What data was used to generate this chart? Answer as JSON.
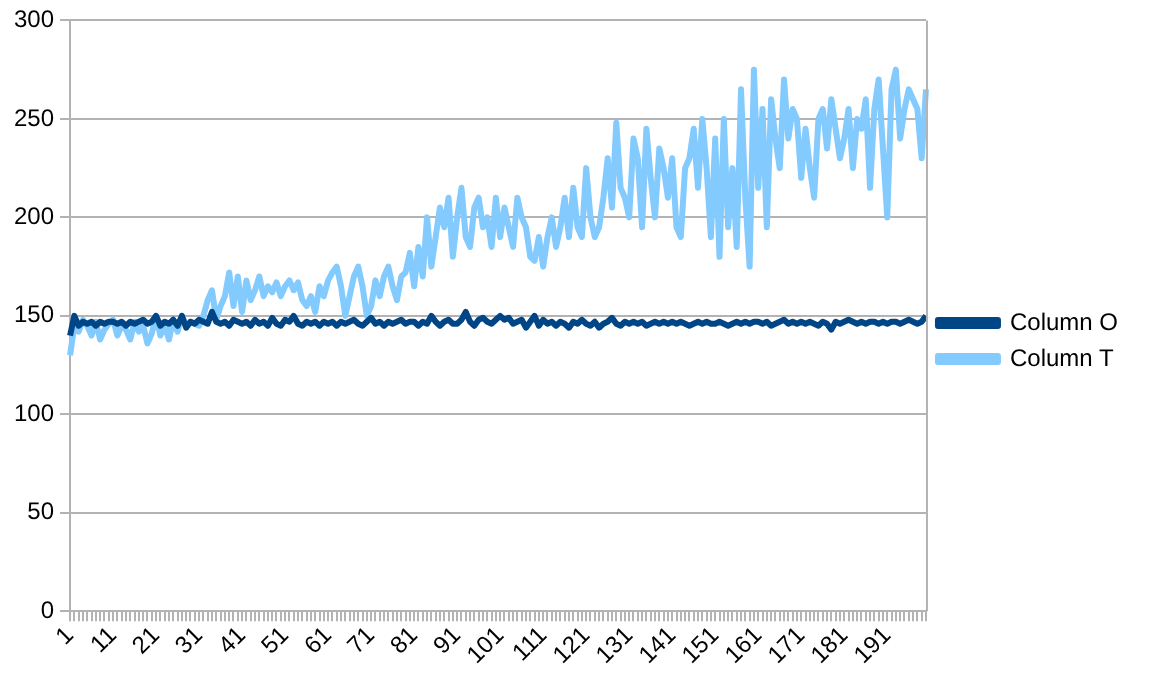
{
  "chart_data": {
    "type": "line",
    "categories": [
      "1",
      null,
      null,
      null,
      null,
      null,
      null,
      null,
      null,
      null,
      "11",
      null,
      null,
      null,
      null,
      null,
      null,
      null,
      null,
      null,
      "21",
      null,
      null,
      null,
      null,
      null,
      null,
      null,
      null,
      null,
      "31",
      null,
      null,
      null,
      null,
      null,
      null,
      null,
      null,
      null,
      "41",
      null,
      null,
      null,
      null,
      null,
      null,
      null,
      null,
      null,
      "51",
      null,
      null,
      null,
      null,
      null,
      null,
      null,
      null,
      null,
      "61",
      null,
      null,
      null,
      null,
      null,
      null,
      null,
      null,
      null,
      "71",
      null,
      null,
      null,
      null,
      null,
      null,
      null,
      null,
      null,
      "81",
      null,
      null,
      null,
      null,
      null,
      null,
      null,
      null,
      null,
      "91",
      null,
      null,
      null,
      null,
      null,
      null,
      null,
      null,
      null,
      "101",
      null,
      null,
      null,
      null,
      null,
      null,
      null,
      null,
      null,
      "111",
      null,
      null,
      null,
      null,
      null,
      null,
      null,
      null,
      null,
      "121",
      null,
      null,
      null,
      null,
      null,
      null,
      null,
      null,
      null,
      "131",
      null,
      null,
      null,
      null,
      null,
      null,
      null,
      null,
      null,
      "141",
      null,
      null,
      null,
      null,
      null,
      null,
      null,
      null,
      null,
      "151",
      null,
      null,
      null,
      null,
      null,
      null,
      null,
      null,
      null,
      "161",
      null,
      null,
      null,
      null,
      null,
      null,
      null,
      null,
      null,
      "171",
      null,
      null,
      null,
      null,
      null,
      null,
      null,
      null,
      null,
      "181",
      null,
      null,
      null,
      null,
      null,
      null,
      null,
      null,
      null,
      "191",
      null,
      null,
      null,
      null,
      null,
      null,
      null,
      null,
      null
    ],
    "series": [
      {
        "name": "Column O",
        "color": "#004586",
        "values": [
          140,
          150,
          145,
          147,
          146,
          147,
          145,
          147,
          146,
          147,
          147,
          146,
          147,
          145,
          147,
          146,
          147,
          148,
          146,
          147,
          150,
          145,
          147,
          146,
          148,
          145,
          150,
          144,
          147,
          146,
          148,
          147,
          146,
          152,
          147,
          146,
          147,
          145,
          148,
          147,
          146,
          147,
          145,
          148,
          146,
          147,
          145,
          149,
          146,
          145,
          148,
          147,
          150,
          146,
          145,
          147,
          146,
          147,
          145,
          147,
          146,
          147,
          145,
          147,
          146,
          147,
          148,
          146,
          145,
          147,
          149,
          146,
          147,
          145,
          147,
          146,
          147,
          148,
          146,
          147,
          147,
          145,
          147,
          146,
          150,
          147,
          145,
          147,
          148,
          146,
          146,
          148,
          152,
          147,
          145,
          148,
          149,
          147,
          146,
          148,
          150,
          148,
          149,
          146,
          147,
          148,
          144,
          147,
          150,
          145,
          148,
          146,
          147,
          145,
          147,
          146,
          144,
          147,
          146,
          148,
          146,
          145,
          147,
          144,
          146,
          147,
          149,
          146,
          145,
          147,
          146,
          147,
          146,
          147,
          145,
          146,
          147,
          146,
          147,
          146,
          147,
          146,
          147,
          146,
          145,
          146,
          147,
          146,
          147,
          146,
          146,
          147,
          146,
          145,
          146,
          147,
          146,
          147,
          146,
          147,
          147,
          146,
          147,
          145,
          146,
          147,
          148,
          146,
          147,
          146,
          147,
          146,
          147,
          146,
          145,
          147,
          146,
          143,
          147,
          146,
          147,
          148,
          147,
          146,
          147,
          146,
          147,
          147,
          146,
          147,
          146,
          147,
          147,
          146,
          147,
          148,
          147,
          146,
          147,
          150
        ]
      },
      {
        "name": "Column T",
        "color": "#83caff",
        "values": [
          130,
          145,
          142,
          148,
          145,
          140,
          147,
          138,
          143,
          146,
          148,
          140,
          145,
          143,
          138,
          147,
          142,
          145,
          136,
          141,
          150,
          140,
          145,
          138,
          148,
          142,
          150,
          145,
          147,
          146,
          145,
          150,
          158,
          163,
          148,
          155,
          160,
          172,
          155,
          170,
          152,
          168,
          158,
          163,
          170,
          160,
          165,
          162,
          167,
          160,
          165,
          168,
          163,
          167,
          158,
          155,
          160,
          152,
          165,
          160,
          168,
          172,
          175,
          165,
          150,
          160,
          170,
          175,
          165,
          150,
          155,
          168,
          160,
          170,
          175,
          165,
          158,
          170,
          172,
          182,
          165,
          185,
          170,
          200,
          175,
          190,
          205,
          195,
          210,
          180,
          200,
          215,
          190,
          185,
          205,
          210,
          195,
          200,
          185,
          210,
          190,
          205,
          195,
          185,
          210,
          200,
          195,
          180,
          178,
          190,
          175,
          190,
          200,
          185,
          195,
          210,
          190,
          215,
          195,
          190,
          225,
          200,
          190,
          195,
          210,
          230,
          205,
          248,
          215,
          210,
          200,
          240,
          230,
          195,
          245,
          220,
          200,
          235,
          225,
          210,
          230,
          195,
          190,
          225,
          230,
          245,
          215,
          250,
          225,
          190,
          240,
          180,
          250,
          195,
          225,
          185,
          265,
          210,
          175,
          275,
          215,
          255,
          195,
          260,
          240,
          225,
          270,
          240,
          255,
          250,
          220,
          245,
          225,
          210,
          250,
          255,
          235,
          260,
          245,
          230,
          240,
          255,
          225,
          250,
          245,
          260,
          215,
          255,
          270,
          235,
          200,
          265,
          275,
          240,
          255,
          265,
          260,
          255,
          230,
          265
        ]
      }
    ],
    "ylim": [
      0,
      300
    ],
    "yticks": [
      0,
      50,
      100,
      150,
      200,
      250,
      300
    ],
    "grid": "y",
    "legend": "right",
    "marker": "none",
    "line_style": "solid"
  }
}
